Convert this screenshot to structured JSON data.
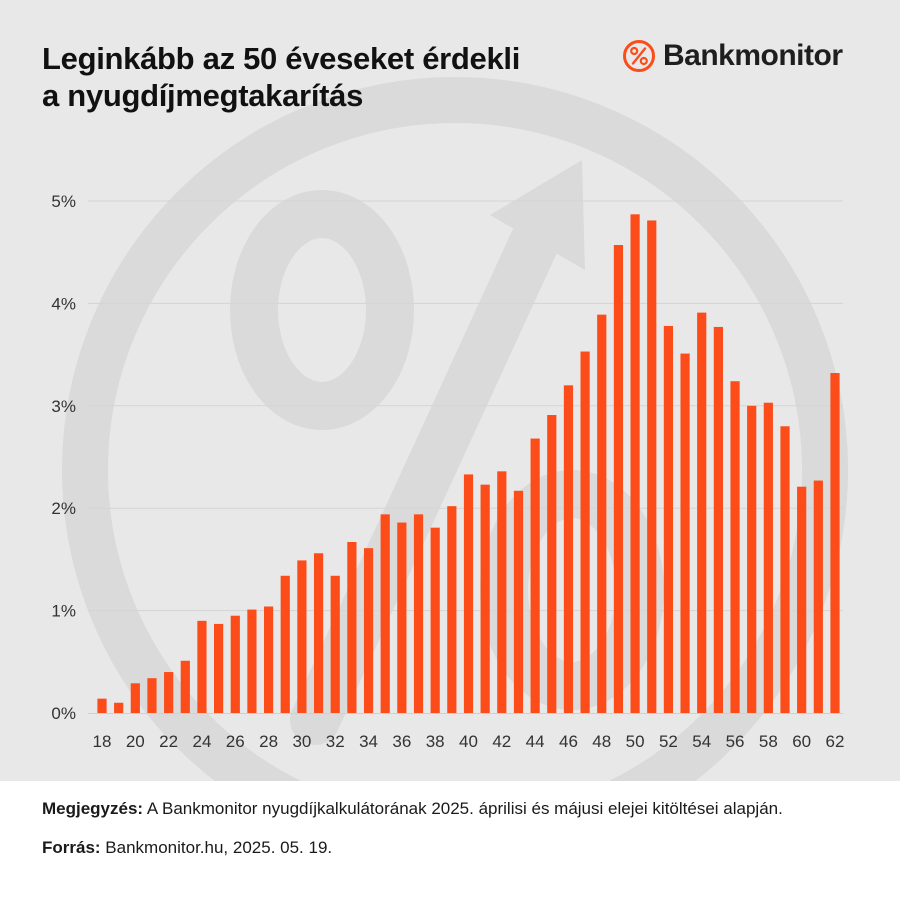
{
  "title_lines": [
    "Leginkább az 50 éveseket érdekli",
    "a nyugdíjmegtakarítás"
  ],
  "logo": {
    "icon": "percent-circle-icon",
    "text": "Bankmonitor"
  },
  "colors": {
    "bar": "#fb4c1a",
    "panel": "#e8e8e8",
    "watermark": "#d9d9d9",
    "grid": "#d4d4d4"
  },
  "chart_data": {
    "type": "bar",
    "x": [
      18,
      19,
      20,
      21,
      22,
      23,
      24,
      25,
      26,
      27,
      28,
      29,
      30,
      31,
      32,
      33,
      34,
      35,
      36,
      37,
      38,
      39,
      40,
      41,
      42,
      43,
      44,
      45,
      46,
      47,
      48,
      49,
      50,
      51,
      52,
      53,
      54,
      55,
      56,
      57,
      58,
      59,
      60,
      61,
      62
    ],
    "values": [
      0.14,
      0.1,
      0.29,
      0.34,
      0.4,
      0.51,
      0.9,
      0.87,
      0.95,
      1.01,
      1.04,
      1.34,
      1.49,
      1.56,
      1.34,
      1.67,
      1.61,
      1.94,
      1.86,
      1.94,
      1.81,
      2.02,
      2.33,
      2.23,
      2.36,
      2.17,
      2.68,
      2.91,
      3.2,
      3.53,
      3.89,
      4.57,
      4.87,
      4.81,
      3.78,
      3.51,
      3.91,
      3.77,
      3.24,
      3.0,
      3.03,
      2.8,
      2.21,
      2.27,
      3.32
    ],
    "x_tick_labels": [
      "18",
      "20",
      "22",
      "24",
      "26",
      "28",
      "30",
      "32",
      "34",
      "36",
      "38",
      "40",
      "42",
      "44",
      "46",
      "48",
      "50",
      "52",
      "54",
      "56",
      "58",
      "60",
      "62"
    ],
    "y_tick_labels": [
      "0%",
      "1%",
      "2%",
      "3%",
      "4%",
      "5%"
    ],
    "y_ticks": [
      0,
      1,
      2,
      3,
      4,
      5
    ],
    "ylim": [
      0,
      5
    ],
    "grid": true
  },
  "note": {
    "label": "Megjegyzés:",
    "text": " A Bankmonitor nyugdíjkalkulátorának 2025. áprilisi és májusi elejei kitöltései alapján."
  },
  "source": {
    "label": "Forrás:",
    "text": " Bankmonitor.hu, 2025. 05. 19."
  }
}
